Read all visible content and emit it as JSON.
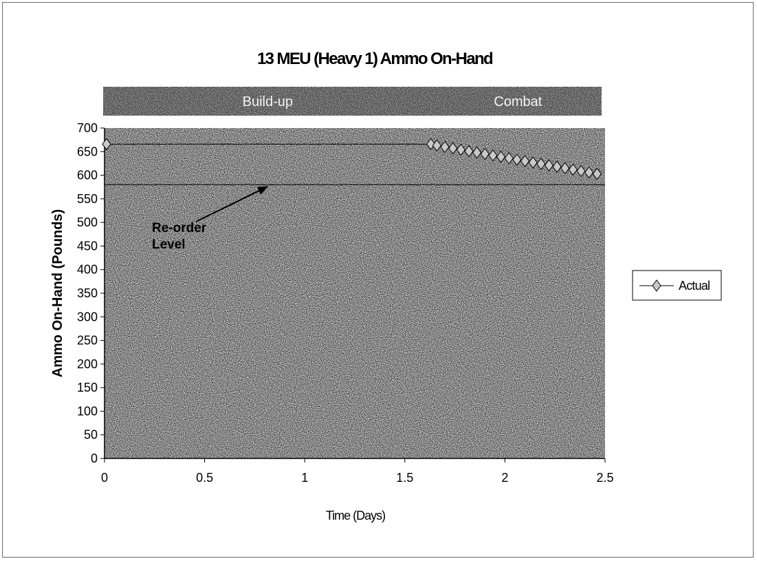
{
  "chart_data": {
    "type": "line",
    "title": "13 MEU (Heavy 1) Ammo On-Hand",
    "xlabel": "Time (Days)",
    "ylabel": "Ammo On-Hand (Pounds)",
    "xlim": [
      0,
      2.5
    ],
    "ylim": [
      0,
      700
    ],
    "x_ticks": [
      0,
      0.5,
      1,
      1.5,
      2,
      2.5
    ],
    "x_tick_labels": [
      "0",
      "0.5",
      "1",
      "1.5",
      "2",
      "2.5"
    ],
    "y_ticks": [
      0,
      50,
      100,
      150,
      200,
      250,
      300,
      350,
      400,
      450,
      500,
      550,
      600,
      650,
      700
    ],
    "y_tick_labels": [
      "0",
      "50",
      "100",
      "150",
      "200",
      "250",
      "300",
      "350",
      "400",
      "450",
      "500",
      "550",
      "600",
      "650",
      "700"
    ],
    "grid": false,
    "background": "stippled grey",
    "legend_position": "right",
    "phases": [
      {
        "label": "Build-up",
        "start": 0,
        "end": 1.63
      },
      {
        "label": "Combat",
        "start": 1.63,
        "end": 2.5
      }
    ],
    "reference_line": {
      "value": 580
    },
    "annotation": {
      "lines": [
        "Re-order",
        "Level"
      ],
      "arrow_to": [
        0.82,
        580
      ]
    },
    "series": [
      {
        "name": "Actual",
        "color": "#000000",
        "marker": "diamond",
        "x": [
          0.01,
          1.63,
          1.66,
          1.7,
          1.74,
          1.78,
          1.82,
          1.86,
          1.9,
          1.94,
          1.98,
          2.02,
          2.06,
          2.1,
          2.14,
          2.18,
          2.22,
          2.26,
          2.3,
          2.34,
          2.38,
          2.42,
          2.46
        ],
        "y": [
          666,
          666,
          663,
          660,
          657,
          654,
          651,
          648,
          645,
          642,
          639,
          636,
          633,
          630,
          627,
          624,
          621,
          618,
          615,
          612,
          609,
          606,
          603
        ]
      }
    ]
  }
}
